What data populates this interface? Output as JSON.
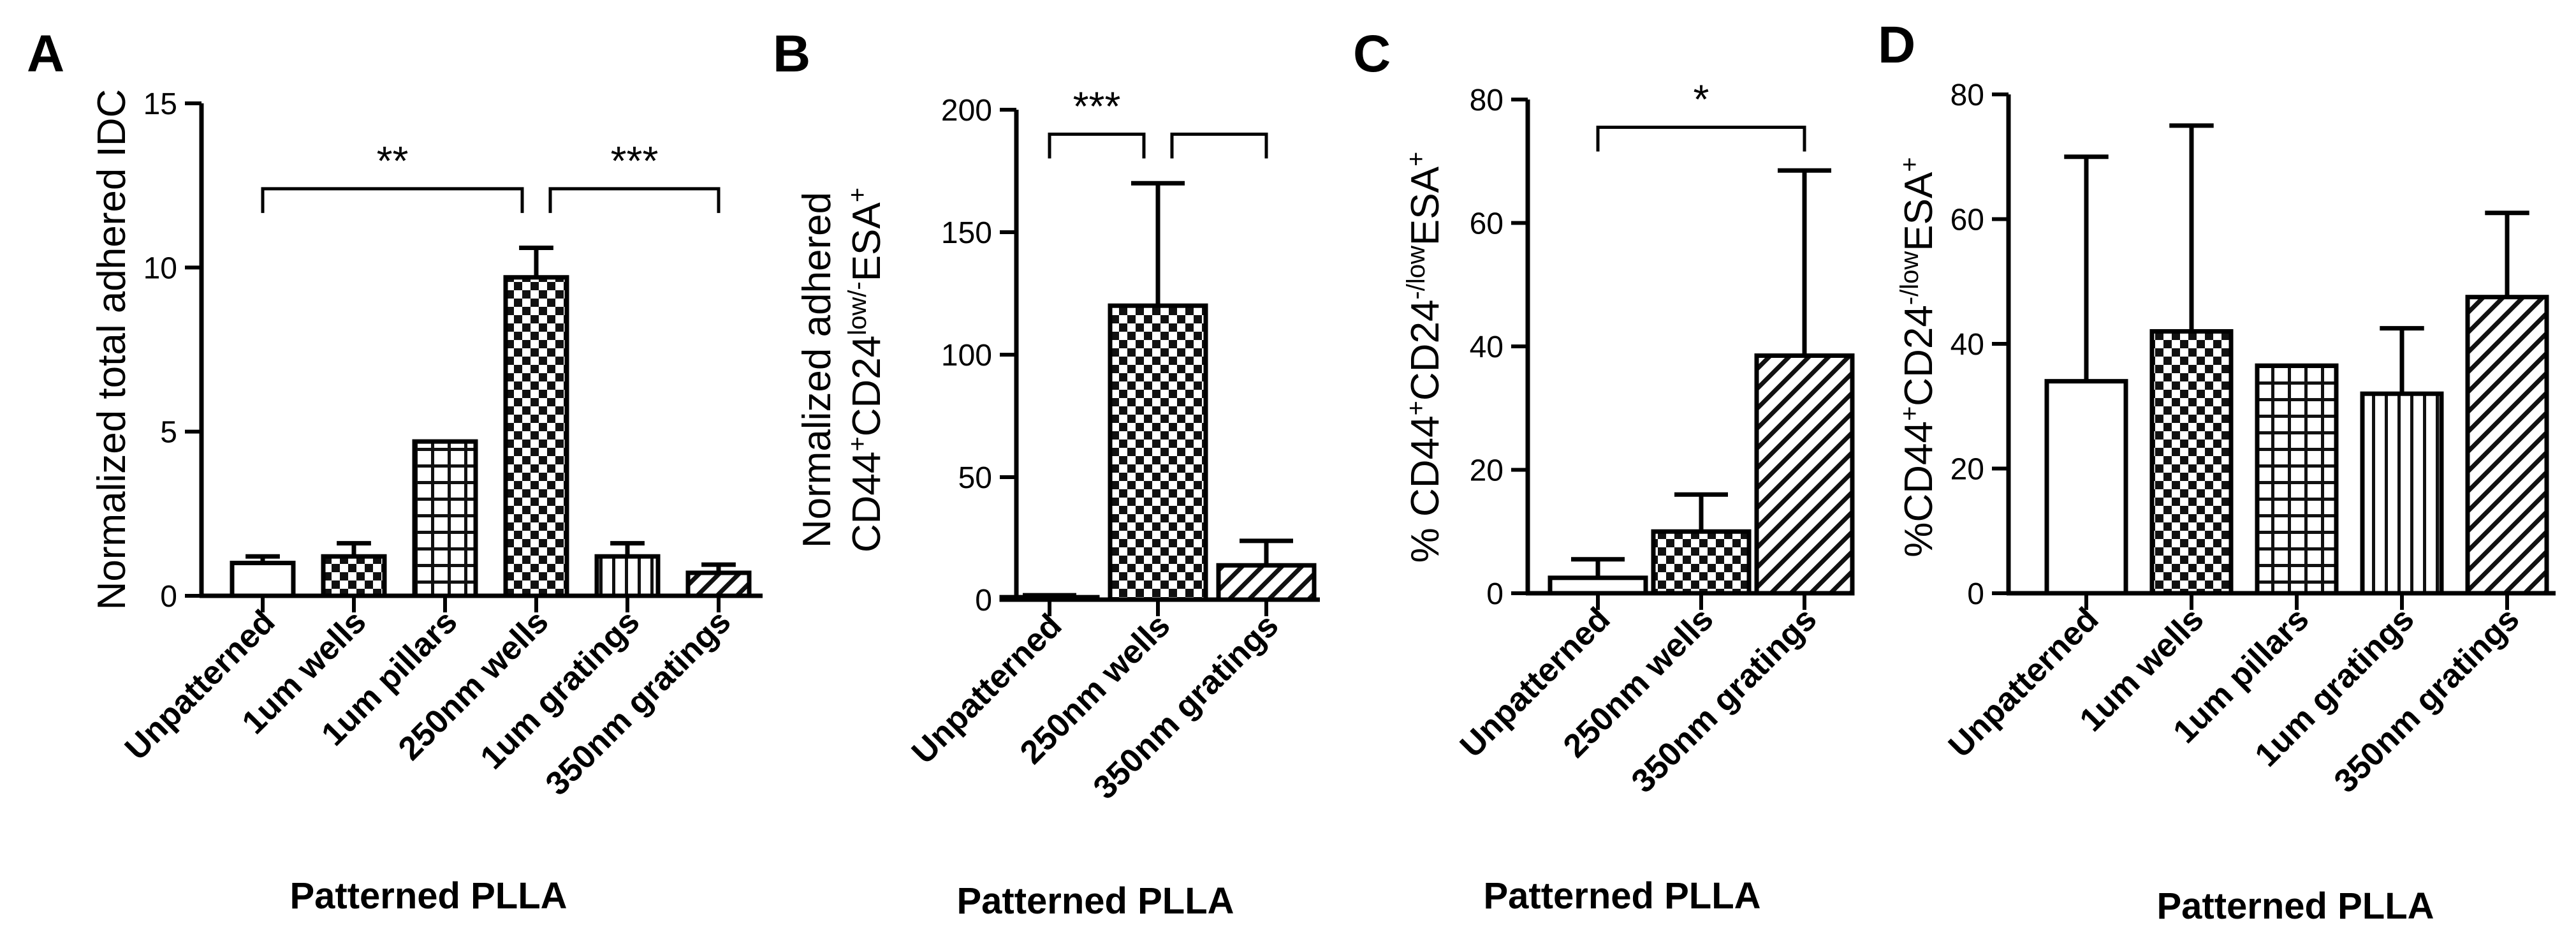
{
  "chart_data": [
    {
      "panel": "A",
      "type": "bar",
      "ylabel": [
        "Normalized total adhered IDC"
      ],
      "xlabel": "Patterned PLLA",
      "ylim": [
        0,
        15
      ],
      "yticks": [
        "0",
        "5",
        "10",
        "15"
      ],
      "categories": [
        "Unpatterned",
        "1um wells",
        "1um pillars",
        "250nm wells",
        "1um gratings",
        "350nm gratings"
      ],
      "values": [
        1.0,
        1.2,
        4.7,
        9.7,
        1.2,
        0.7
      ],
      "errors": [
        0.2,
        0.4,
        0.0,
        0.9,
        0.4,
        0.25
      ],
      "patterns": [
        "none",
        "checker",
        "grid",
        "checker",
        "vlines",
        "diag"
      ],
      "significance": [
        {
          "from": 0,
          "to": 3,
          "label": "**",
          "y": 12.4
        },
        {
          "from": 3,
          "to": 5,
          "label": "***",
          "y": 12.4
        }
      ]
    },
    {
      "panel": "B",
      "type": "bar",
      "ylabel": [
        "Normalized adhered",
        "CD44",
        "+",
        "CD24",
        "low/-",
        "ESA",
        "+"
      ],
      "xlabel": "Patterned PLLA",
      "ylim": [
        0,
        200
      ],
      "yticks": [
        "0",
        "50",
        "100",
        "150",
        "200"
      ],
      "categories": [
        "Unpatterned",
        "250nm wells",
        "350nm gratings"
      ],
      "values": [
        1,
        120,
        14
      ],
      "errors": [
        0.8,
        50,
        10
      ],
      "patterns": [
        "none",
        "checker",
        "diag"
      ],
      "significance": [
        {
          "from": 0,
          "to": 1,
          "label": "***",
          "y": 190
        },
        {
          "from": 1,
          "to": 2,
          "label": "",
          "y": 190
        }
      ]
    },
    {
      "panel": "C",
      "type": "bar",
      "ylabel": [
        "% CD44",
        "+",
        "CD24",
        "-/low",
        "ESA",
        "+"
      ],
      "xlabel": "Patterned PLLA",
      "ylim": [
        0,
        80
      ],
      "yticks": [
        "0",
        "20",
        "40",
        "60",
        "80"
      ],
      "categories": [
        "Unpatterned",
        "250nm wells",
        "350nm gratings"
      ],
      "values": [
        2.5,
        10,
        38.5
      ],
      "errors": [
        3,
        6,
        30
      ],
      "patterns": [
        "none",
        "checker",
        "diag"
      ],
      "significance": [
        {
          "from": 0,
          "to": 2,
          "label": "*",
          "y": 75.5
        }
      ]
    },
    {
      "panel": "D",
      "type": "bar",
      "ylabel": [
        "%CD44",
        "+",
        "CD24",
        "-/low",
        "ESA",
        "+"
      ],
      "xlabel": "Patterned PLLA",
      "ylim": [
        0,
        80
      ],
      "yticks": [
        "0",
        "20",
        "40",
        "60",
        "80"
      ],
      "categories": [
        "Unpatterned",
        "1um wells",
        "1um pillars",
        "1um gratings",
        "350nm gratings"
      ],
      "values": [
        34,
        42,
        36.5,
        32,
        47.5
      ],
      "errors": [
        36,
        33,
        0,
        10.5,
        13.5
      ],
      "patterns": [
        "none",
        "checker",
        "grid",
        "vlines",
        "diag"
      ],
      "significance": []
    }
  ]
}
